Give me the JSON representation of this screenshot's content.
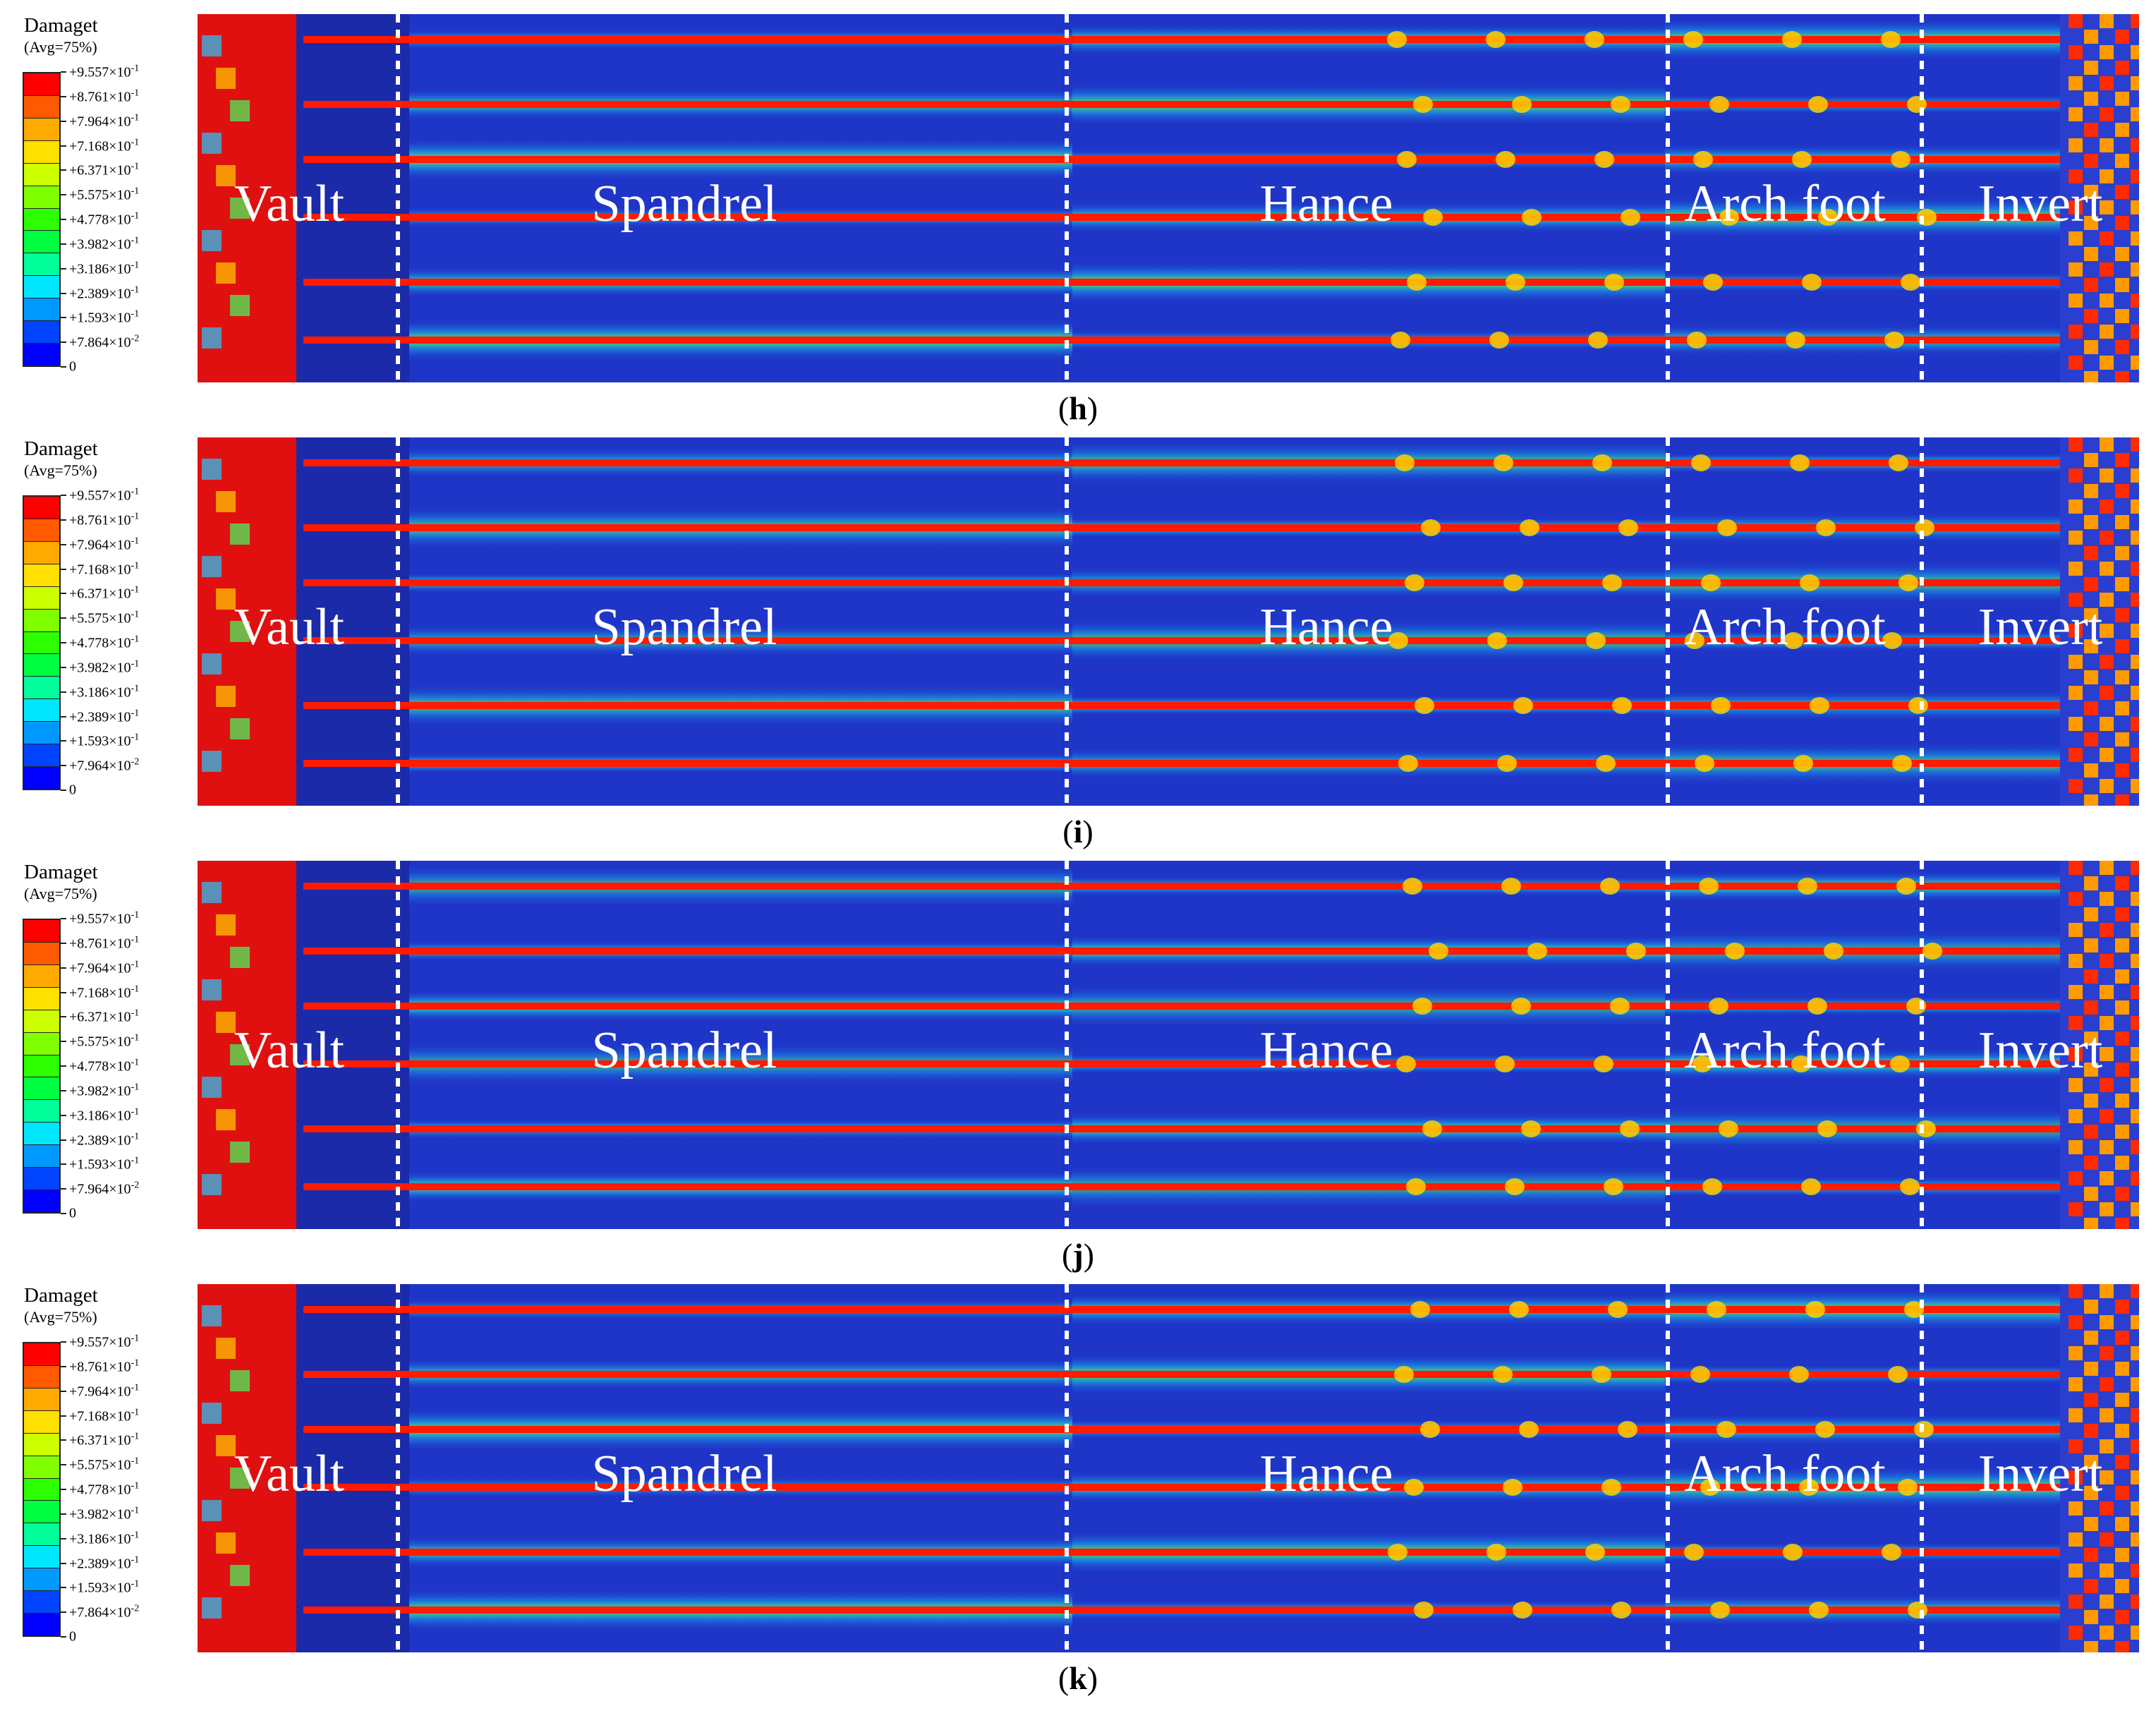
{
  "figure": {
    "legend": {
      "title": "Damaget",
      "subtitle": "(Avg=75%)",
      "swatch_colors": [
        "#ff0000",
        "#ff5a00",
        "#ffaa00",
        "#ffe000",
        "#ccff00",
        "#80ff00",
        "#2cff00",
        "#00ff40",
        "#00ff9a",
        "#00e6ff",
        "#0099ff",
        "#0044ff",
        "#0000ff"
      ],
      "tick_mantissas": [
        "+9.557",
        "+8.761",
        "+7.964",
        "+7.168",
        "+6.371",
        "+5.575",
        "+4.778",
        "+3.982",
        "+3.186",
        "+2.389",
        "+1.593"
      ]
    },
    "regions": [
      "Vault",
      "Spandrel",
      "Hance",
      "Arch foot",
      "Invert"
    ],
    "panels": [
      {
        "label": "h",
        "last_mantissa": "+7.864"
      },
      {
        "label": "i",
        "last_mantissa": "+7.964"
      },
      {
        "label": "j",
        "last_mantissa": "+7.964"
      },
      {
        "label": "k",
        "last_mantissa": "+7.864"
      }
    ],
    "tick_times": "×10",
    "tick_exp1": "-1",
    "tick_exp2": "-2",
    "tick_zero": "0",
    "colors": {
      "background_blue": "#1f35c8",
      "damage_red": "#ff1a00",
      "vault_red": "#e01010",
      "divider_white": "#ffffff"
    }
  }
}
